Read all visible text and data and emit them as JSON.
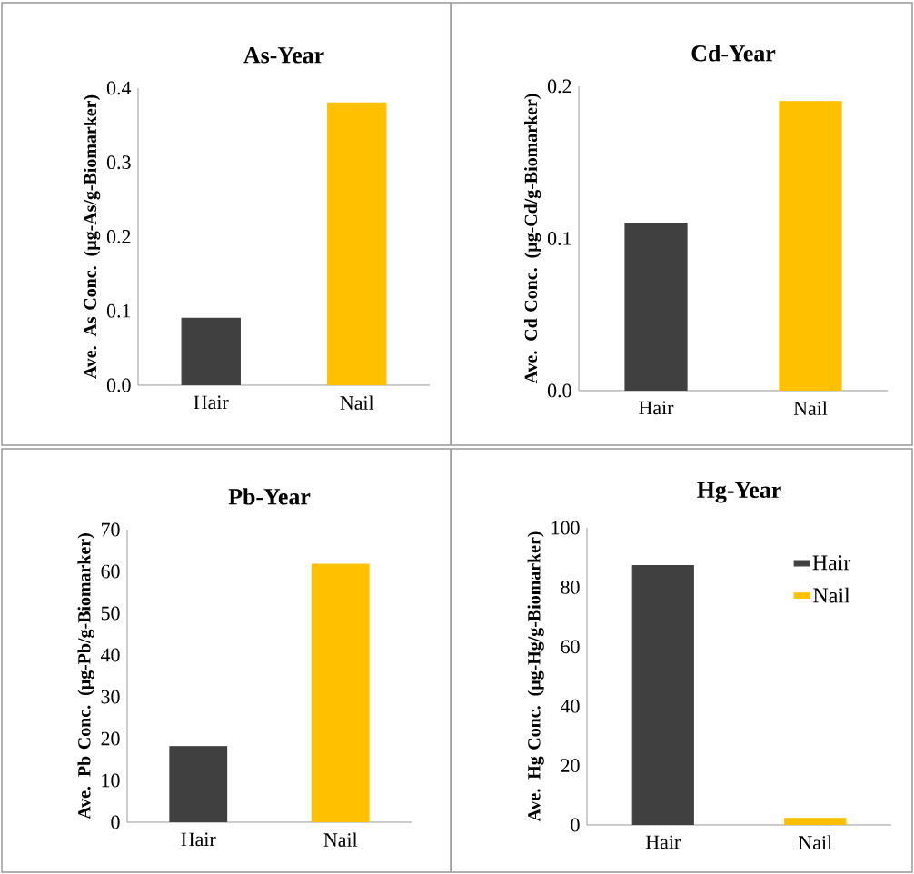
{
  "chart_data": [
    {
      "type": "bar",
      "title": "As-Year",
      "ylabel": "Ave. As Conc. (µg-As/g-Biomarker)",
      "categories": [
        "Hair",
        "Nail"
      ],
      "values": [
        0.09,
        0.38
      ],
      "colors": [
        "#404040",
        "#ffc000"
      ],
      "ylim": [
        0,
        0.4
      ],
      "yticks": [
        {
          "value": 0,
          "label": "0.0"
        },
        0.1,
        0.2,
        0.3,
        0.4
      ]
    },
    {
      "type": "bar",
      "title": "Cd-Year",
      "ylabel": "Ave. Cd Conc. (µg-Cd/g-Biomarker)",
      "categories": [
        "Hair",
        "Nail"
      ],
      "values": [
        0.11,
        0.19
      ],
      "colors": [
        "#404040",
        "#ffc000"
      ],
      "ylim": [
        0,
        0.2
      ],
      "yticks": [
        {
          "value": 0,
          "label": "0.0"
        },
        0.1,
        0.2
      ]
    },
    {
      "type": "bar",
      "title": "Pb-Year",
      "ylabel": "Ave. Pb Conc. (µg-Pb/g-Biomarker)",
      "categories": [
        "Hair",
        "Nail"
      ],
      "values": [
        18.1,
        61.7
      ],
      "colors": [
        "#404040",
        "#ffc000"
      ],
      "ylim": [
        0,
        70
      ],
      "yticks": [
        0,
        10,
        20,
        30,
        40,
        50,
        60,
        70
      ]
    },
    {
      "type": "bar",
      "title": "Hg-Year",
      "ylabel": "Ave. Hg Conc. (µg-Hg/g-Biomarker)",
      "categories": [
        "Hair",
        "Nail"
      ],
      "series": [
        {
          "name": "Hair",
          "color": "#404040",
          "values": [
            87.3,
            null
          ]
        },
        {
          "name": "Nail",
          "color": "#ffc000",
          "values": [
            null,
            2.2
          ]
        }
      ],
      "ylim": [
        0,
        100
      ],
      "yticks": [
        0,
        20,
        40,
        60,
        80,
        100
      ],
      "legend": "top right"
    }
  ]
}
